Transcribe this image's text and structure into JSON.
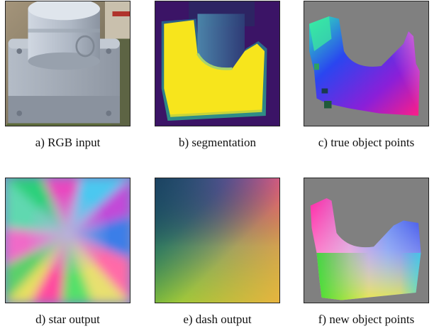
{
  "panels": [
    {
      "caption": "a) RGB input"
    },
    {
      "caption": "b) segmentation"
    },
    {
      "caption": "c) true object points"
    },
    {
      "caption": "d) star output"
    },
    {
      "caption": "e) dash output"
    },
    {
      "caption": "f) new object points"
    }
  ],
  "colors": {
    "segmentation_background": "#3b1466",
    "segmentation_foreground": "#f7e51c",
    "object_points_background": "#808080"
  }
}
